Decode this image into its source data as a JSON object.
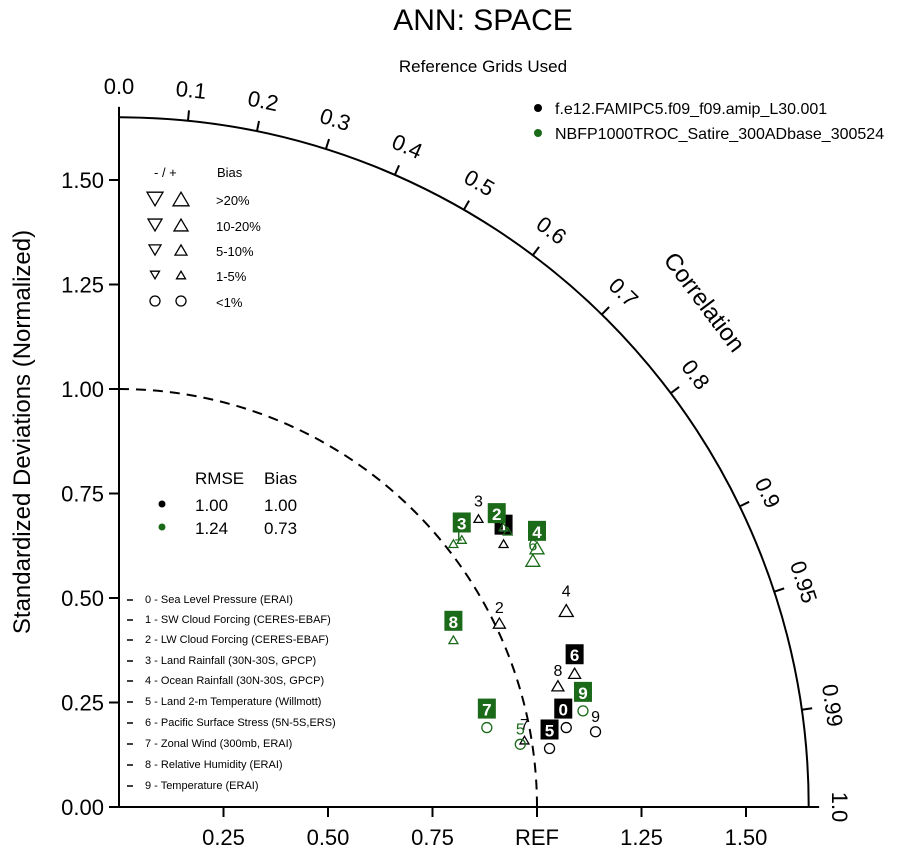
{
  "title": "ANN: SPACE",
  "subtitle": "Reference Grids Used",
  "colors": {
    "case1": "#000000",
    "case2": "#1a6a1a",
    "label_text": "#ffffff"
  },
  "chart_data": {
    "type": "scatter",
    "subtype": "taylor-diagram",
    "ylabel": "Standardized Deviations (Normalized)",
    "arc_label": "Correlation",
    "x_tick_labels": [
      "0.25",
      "0.50",
      "0.75",
      "REF",
      "1.25",
      "1.50"
    ],
    "x_tick_values": [
      0.25,
      0.5,
      0.75,
      1.0,
      1.25,
      1.5
    ],
    "y_tick_labels": [
      "0.00",
      "0.25",
      "0.50",
      "0.75",
      "1.00",
      "1.25",
      "1.50"
    ],
    "y_tick_values": [
      0,
      0.25,
      0.5,
      0.75,
      1.0,
      1.25,
      1.5
    ],
    "std_range": [
      0,
      1.65
    ],
    "ref_arc_std": 1.0,
    "correlation_ticks": [
      "0.0",
      "0.1",
      "0.2",
      "0.3",
      "0.4",
      "0.5",
      "0.6",
      "0.7",
      "0.8",
      "0.9",
      "0.95",
      "0.99",
      "1.0"
    ],
    "correlation_values": [
      0.0,
      0.1,
      0.2,
      0.3,
      0.4,
      0.5,
      0.6,
      0.7,
      0.8,
      0.9,
      0.95,
      0.99,
      1.0
    ],
    "series": [
      {
        "name": "f.e12.FAMIPC5.f09_f09.amip_L30.001",
        "points": [
          {
            "id": 0,
            "x": 1.07,
            "y": 0.19,
            "bias": "<1%"
          },
          {
            "id": 1,
            "x": 0.92,
            "y": 0.63,
            "bias": "1-5%"
          },
          {
            "id": 2,
            "x": 0.91,
            "y": 0.44,
            "bias": "5-10%"
          },
          {
            "id": 3,
            "x": 0.86,
            "y": 0.69,
            "bias": "1-5%"
          },
          {
            "id": 4,
            "x": 1.07,
            "y": 0.47,
            "bias": "10-20%"
          },
          {
            "id": 5,
            "x": 1.03,
            "y": 0.14,
            "bias": "<1%"
          },
          {
            "id": 6,
            "x": 1.09,
            "y": 0.32,
            "bias": "5-10%"
          },
          {
            "id": 7,
            "x": 0.97,
            "y": 0.16,
            "bias": "1-5%"
          },
          {
            "id": 8,
            "x": 1.05,
            "y": 0.29,
            "bias": "5-10%"
          },
          {
            "id": 9,
            "x": 1.14,
            "y": 0.18,
            "bias": "<1%"
          }
        ]
      },
      {
        "name": "NBFP1000TROC_Satire_300ADbase_300524",
        "points": [
          {
            "id": 1,
            "x": 0.92,
            "y": 0.67,
            "bias": "1-5%"
          },
          {
            "id": 2,
            "x": 0.93,
            "y": 0.66,
            "bias": "1-5%"
          },
          {
            "id": 3,
            "x": 0.82,
            "y": 0.64,
            "bias": "1-5%"
          },
          {
            "id": 31,
            "x": 0.8,
            "y": 0.63,
            "bias": "1-5%"
          },
          {
            "id": 4,
            "x": 1.0,
            "y": 0.62,
            "bias": "10-20%"
          },
          {
            "id": 6,
            "x": 0.99,
            "y": 0.59,
            "bias": "10-20%"
          },
          {
            "id": 5,
            "x": 0.96,
            "y": 0.15,
            "bias": "<1%"
          },
          {
            "id": 7,
            "x": 0.88,
            "y": 0.19,
            "bias": "<1%"
          },
          {
            "id": 8,
            "x": 0.8,
            "y": 0.4,
            "bias": "1-5%"
          },
          {
            "id": 9,
            "x": 1.11,
            "y": 0.23,
            "bias": "<1%"
          }
        ]
      }
    ],
    "summary": {
      "headers": [
        "RMSE",
        "Bias"
      ],
      "rows": [
        {
          "rmse": "1.00",
          "bias": "1.00"
        },
        {
          "rmse": "1.24",
          "bias": "0.73"
        }
      ]
    },
    "bias_legend": {
      "header_sign": "- / +",
      "header_bias": "Bias",
      "rows": [
        ">20%",
        "10-20%",
        "5-10%",
        "1-5%",
        "<1%"
      ]
    },
    "variables": [
      "0 - Sea Level Pressure (ERAI)",
      "1 - SW Cloud Forcing (CERES-EBAF)",
      "2 - LW Cloud Forcing (CERES-EBAF)",
      "3 - Land Rainfall (30N-30S, GPCP)",
      "4 - Ocean Rainfall (30N-30S, GPCP)",
      "5 - Land 2-m Temperature (Willmott)",
      "6 - Pacific Surface Stress (5N-5S,ERS)",
      "7 - Zonal Wind (300mb, ERAI)",
      "8 - Relative Humidity (ERAI)",
      "9 - Temperature (ERAI)"
    ]
  }
}
